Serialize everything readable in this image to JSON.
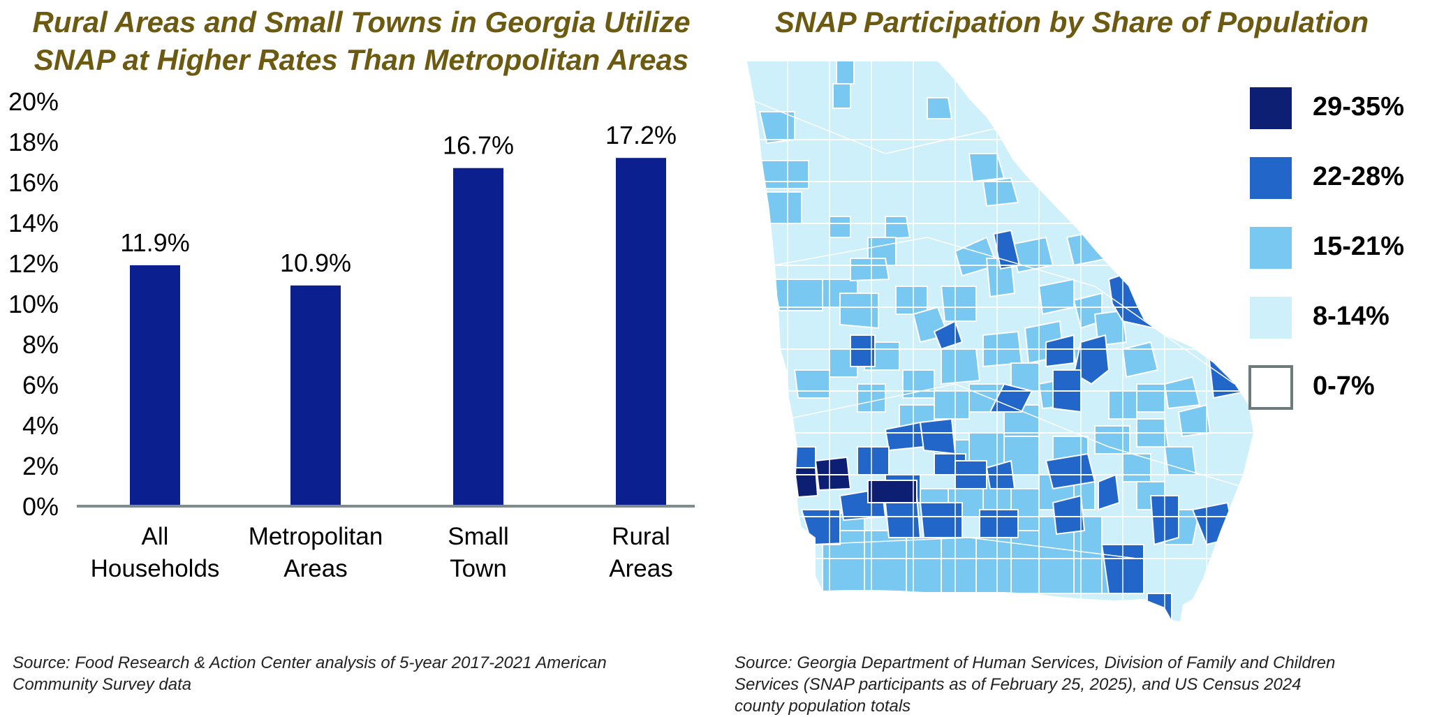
{
  "left": {
    "title_line1": "Rural Areas and Small Towns in Georgia Utilize",
    "title_line2": "SNAP at Higher Rates Than Metropolitan Areas",
    "source_line1": "Source: Food Research & Action Center analysis of 5-year 2017-2021 American",
    "source_line2": "Community Survey data"
  },
  "right": {
    "title": "SNAP Participation by Share of Population",
    "source_line1": "Source: Georgia Department of Human Services, Division of Family and Children",
    "source_line2": "Services (SNAP participants as of February 25, 2025), and US Census 2024",
    "source_line3": "county population totals",
    "legend": [
      {
        "label": "29-35%",
        "color": "#0d1f73"
      },
      {
        "label": "22-28%",
        "color": "#2166c8"
      },
      {
        "label": "15-21%",
        "color": "#78c8f2"
      },
      {
        "label": "8-14%",
        "color": "#cdf0fa"
      },
      {
        "label": "0-7%",
        "color": "#ffffff"
      }
    ]
  },
  "chart_data": {
    "type": "bar",
    "categories": [
      [
        "All",
        "Households"
      ],
      [
        "Metropolitan",
        "Areas"
      ],
      [
        "Small",
        "Town"
      ],
      [
        "Rural",
        "Areas"
      ]
    ],
    "values": [
      11.9,
      10.9,
      16.7,
      17.2
    ],
    "value_labels": [
      "11.9%",
      "10.9%",
      "16.7%",
      "17.2%"
    ],
    "ylim": [
      0,
      20
    ],
    "yticks": [
      "0%",
      "2%",
      "4%",
      "6%",
      "8%",
      "10%",
      "12%",
      "14%",
      "16%",
      "18%",
      "20%"
    ],
    "bar_color": "#0b1f8f",
    "grid": false
  },
  "map_counties": [
    {
      "id": "c1",
      "cls": 3
    },
    {
      "id": "c2",
      "cls": 2
    },
    {
      "id": "c3",
      "cls": 3
    },
    {
      "id": "c4",
      "cls": 2
    },
    {
      "id": "c5",
      "cls": 3
    },
    {
      "id": "c6",
      "cls": 2
    },
    {
      "id": "c7",
      "cls": 3
    },
    {
      "id": "c8",
      "cls": 2
    },
    {
      "id": "c9",
      "cls": 3
    },
    {
      "id": "c10",
      "cls": 3
    }
  ]
}
